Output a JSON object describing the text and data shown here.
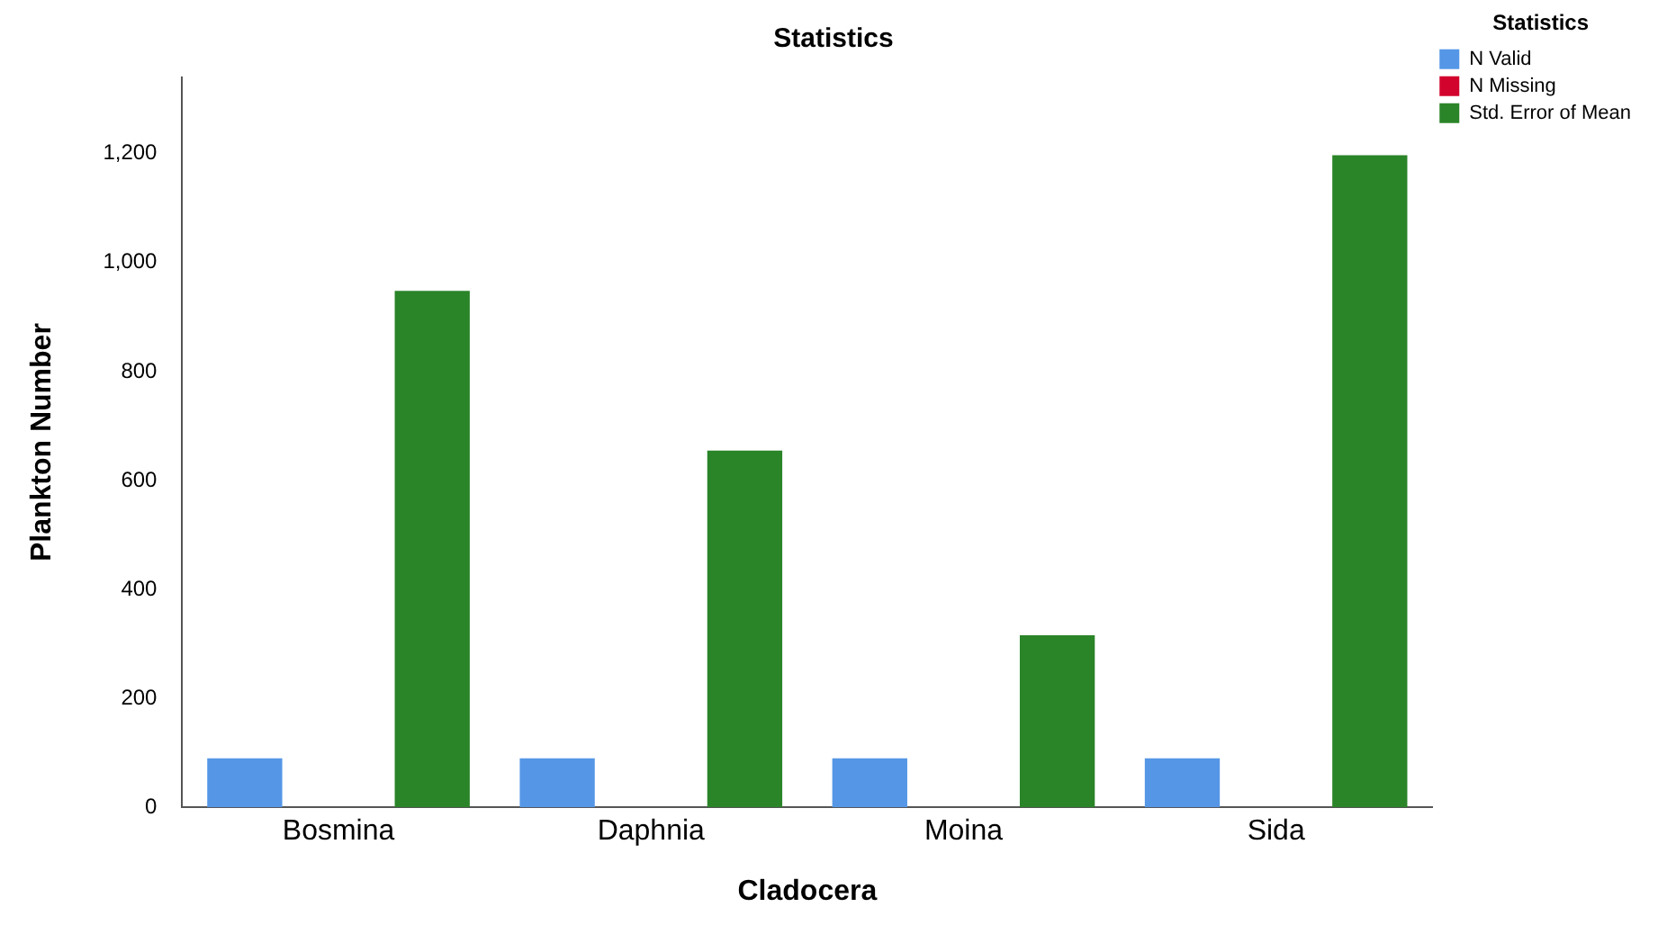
{
  "chart_data": {
    "type": "bar",
    "title": "Statistics",
    "xlabel": "Cladocera",
    "ylabel": "Plankton Number",
    "legend_title": "Statistics",
    "categories": [
      "Bosmina",
      "Daphnia",
      "Moina",
      "Sida"
    ],
    "series": [
      {
        "name": "N Valid",
        "color": "#5596e6",
        "values": [
          90,
          90,
          90,
          90
        ]
      },
      {
        "name": "N Missing",
        "color": "#d2042d",
        "values": [
          0,
          0,
          0,
          0
        ]
      },
      {
        "name": "Std. Error of Mean",
        "color": "#2a8428",
        "values": [
          948,
          655,
          316,
          1197
        ]
      }
    ],
    "ylim": [
      0,
      1340
    ],
    "yticks": [
      0,
      {
        "value": 200,
        "label": "200"
      },
      {
        "value": 400,
        "label": "400"
      },
      {
        "value": 600,
        "label": "600"
      },
      {
        "value": 800,
        "label": "800"
      },
      {
        "value": 1000,
        "label": "1,000"
      },
      {
        "value": 1200,
        "label": "1,200"
      }
    ],
    "grid": false,
    "legend": "top right"
  }
}
